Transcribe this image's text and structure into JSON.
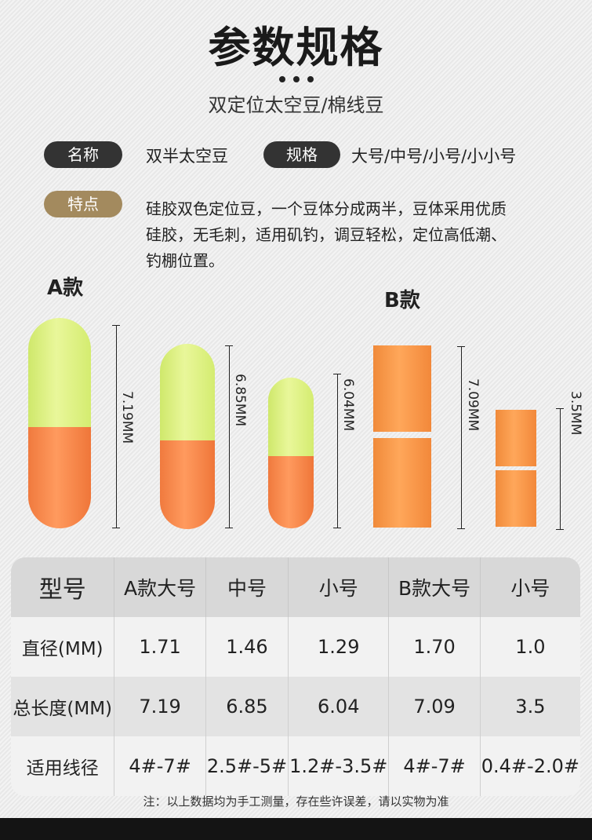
{
  "header": {
    "title": "参数规格",
    "subtitle": "双定位太空豆/棉线豆"
  },
  "info": {
    "name_label": "名称",
    "name_value": "双半太空豆",
    "spec_label": "规格",
    "spec_value": "大号/中号/小号/小小号",
    "feature_label": "特点",
    "feature_lines": [
      "硅胶双色定位豆，一个豆体分成两半，豆体采用优质",
      "硅胶，无毛刺，适用矶钓，调豆轻松，定位高低潮、",
      "钓棚位置。"
    ]
  },
  "illustration": {
    "model_a_label": "A款",
    "model_b_label": "B款",
    "dims": [
      "7.19MM",
      "6.85MM",
      "6.04MM",
      "7.09MM",
      "3.5MM"
    ],
    "colors": {
      "yellow_green": "#e0f286",
      "orange": "#f58a4e",
      "block_orange": "#f79a4a"
    }
  },
  "table": {
    "headers": [
      "型号",
      "A款大号",
      "中号",
      "小号",
      "B款大号",
      "小号"
    ],
    "rows": [
      [
        "直径(MM)",
        "1.71",
        "1.46",
        "1.29",
        "1.70",
        "1.0"
      ],
      [
        "总长度(MM)",
        "7.19",
        "6.85",
        "6.04",
        "7.09",
        "3.5"
      ],
      [
        "适用线径",
        "4#-7#",
        "2.5#-5#",
        "1.2#-3.5#",
        "4#-7#",
        "0.4#-2.0#"
      ]
    ]
  },
  "note": "注：以上数据均为手工测量，存在些许误差，请以实物为准"
}
